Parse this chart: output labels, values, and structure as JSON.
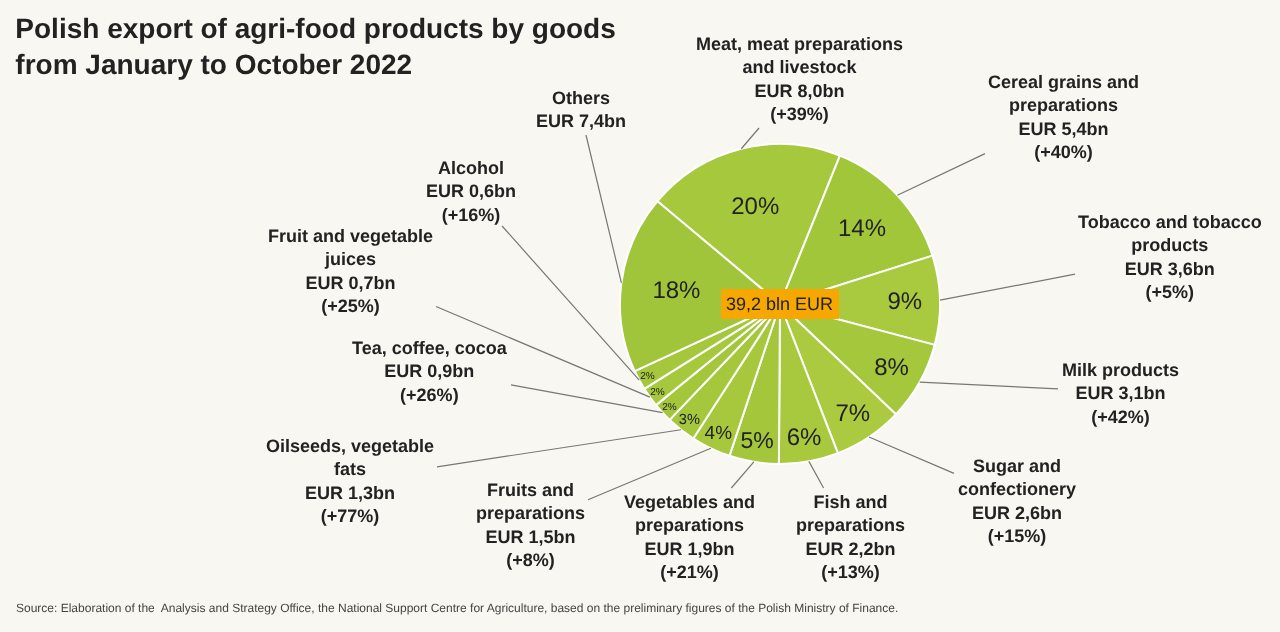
{
  "chart_data": {
    "type": "pie",
    "title": "Polish export of agri-food products by goods\nfrom January to October 2022",
    "categories": [
      "Meat, meat preparations\nand livestock\nEUR 8,0bn\n(+39%)",
      "Cereal grains and\npreparations\nEUR 5,4bn\n(+40%)",
      "Tobacco and tobacco\nproducts\nEUR 3,6bn\n(+5%)",
      "Milk products\nEUR 3,1bn\n(+42%)",
      "Sugar and\nconfectionery\nEUR 2,6bn\n(+15%)",
      "Fish and\npreparations\nEUR 2,2bn\n(+13%)",
      "Vegetables and\npreparations\nEUR 1,9bn\n(+21%)",
      "Fruits and\npreparations\nEUR 1,5bn\n(+8%)",
      "Oilseeds, vegetable\nfats\nEUR 1,3bn\n(+77%)",
      "Tea, coffee, cocoa\nEUR 0,9bn\n(+26%)",
      "Fruit and vegetable\njuices\nEUR 0,7bn\n(+25%)",
      "Alcohol\nEUR 0,6bn\n(+16%)",
      "Others\nEUR 7,4bn"
    ],
    "values": [
      20,
      14,
      9,
      8,
      7,
      6,
      5,
      4,
      3,
      2,
      2,
      2,
      18
    ],
    "value_labels": [
      "20%",
      "14%",
      "9%",
      "8%",
      "7%",
      "6%",
      "5%",
      "4%",
      "3%",
      "2%",
      "2%",
      "2%",
      "18%"
    ],
    "colors": [
      "#a6c83c",
      "#a2c63a",
      "#a9ca3e",
      "#a4c73b",
      "#acca40",
      "#a8c93d",
      "#a3c63a",
      "#a7c83c",
      "#a5c73b",
      "#a4c63b",
      "#a6c83c",
      "#a5c73c",
      "#a1c53a"
    ],
    "annotations": [
      "39,2 bln EUR",
      "Source: Elaboration of the  Analysis and Strategy Office, the National Support Centre for Agriculture, based on the preliminary figures of the Polish Ministry of Finance."
    ]
  }
}
